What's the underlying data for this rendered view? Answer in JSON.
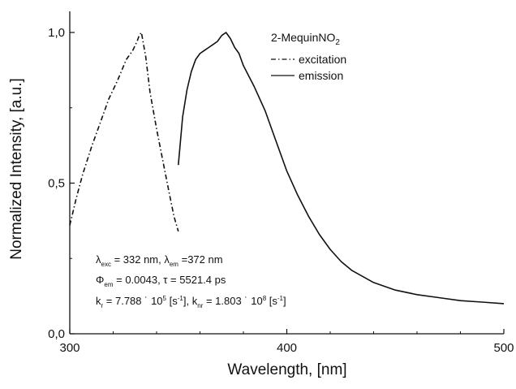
{
  "chart_data": {
    "type": "line",
    "title": "",
    "xlabel": "Wavelength, [nm]",
    "ylabel": "Normalized Intensity, [a.u.]",
    "xlim": [
      300,
      500
    ],
    "ylim": [
      0,
      1.07
    ],
    "xticks": [
      {
        "value": 300,
        "label": "300"
      },
      {
        "value": 400,
        "label": "400"
      },
      {
        "value": 500,
        "label": "500"
      }
    ],
    "yticks": [
      {
        "value": 0,
        "label": "0,0"
      },
      {
        "value": 0.5,
        "label": "0,5"
      },
      {
        "value": 1.0,
        "label": "1,0"
      }
    ],
    "grid": false,
    "legend": {
      "position": "top-right",
      "title_main": "2-MequinNO",
      "title_sub": "2",
      "entries": [
        "excitation",
        "emission"
      ]
    },
    "series": [
      {
        "name": "excitation",
        "style": "dash-dot",
        "color": "#111111",
        "x": [
          300,
          303,
          306,
          310,
          314,
          318,
          322,
          326,
          329,
          331,
          332,
          333,
          335,
          337,
          340,
          343,
          346,
          348,
          350
        ],
        "y": [
          0.36,
          0.45,
          0.53,
          0.62,
          0.7,
          0.78,
          0.84,
          0.91,
          0.94,
          0.97,
          0.99,
          1.0,
          0.92,
          0.8,
          0.68,
          0.57,
          0.46,
          0.39,
          0.34
        ]
      },
      {
        "name": "emission",
        "style": "solid",
        "color": "#111111",
        "x": [
          350,
          352,
          354,
          356,
          358,
          360,
          362,
          364,
          366,
          368,
          370,
          372,
          374,
          376,
          378,
          380,
          385,
          390,
          395,
          400,
          405,
          410,
          415,
          420,
          425,
          430,
          440,
          450,
          460,
          470,
          480,
          490,
          500
        ],
        "y": [
          0.56,
          0.72,
          0.81,
          0.87,
          0.91,
          0.93,
          0.94,
          0.95,
          0.96,
          0.97,
          0.99,
          1.0,
          0.98,
          0.95,
          0.93,
          0.89,
          0.82,
          0.74,
          0.64,
          0.54,
          0.46,
          0.39,
          0.33,
          0.28,
          0.24,
          0.21,
          0.17,
          0.145,
          0.13,
          0.12,
          0.11,
          0.105,
          0.1
        ]
      }
    ],
    "annotation": {
      "line1": {
        "lambda": "λ",
        "exc": "exc",
        "mid1": " = 332 nm, ",
        "em": "em",
        "mid2": " =372 nm"
      },
      "line2": {
        "phi": "Φ",
        "em": "em",
        "mid": " = 0.0043, τ = 5521.4 ps"
      },
      "line3": {
        "k": "k",
        "r": "r",
        "mid": " = 7.788 ˙ 10",
        "exp5": "5",
        "unit1": " [s",
        "exp_m1a": "-1",
        "close1": "], k",
        "nr": "nr",
        "mid2": " = 1.803 ˙ 10",
        "exp8": "8",
        "unit2": " [s",
        "exp_m1b": "-1",
        "close2": "]"
      }
    }
  }
}
